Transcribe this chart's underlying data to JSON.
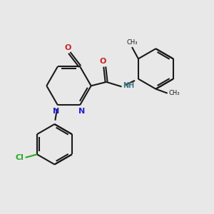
{
  "bg_color": "#e8e8e8",
  "bond_color": "#1a1a1a",
  "N_color": "#2222cc",
  "O_color": "#cc2222",
  "Cl_color": "#22aa22",
  "NH_color": "#447788",
  "line_width": 1.5,
  "fig_size": [
    3.0,
    3.0
  ],
  "dpi": 100,
  "xlim": [
    0,
    10
  ],
  "ylim": [
    0,
    10
  ]
}
